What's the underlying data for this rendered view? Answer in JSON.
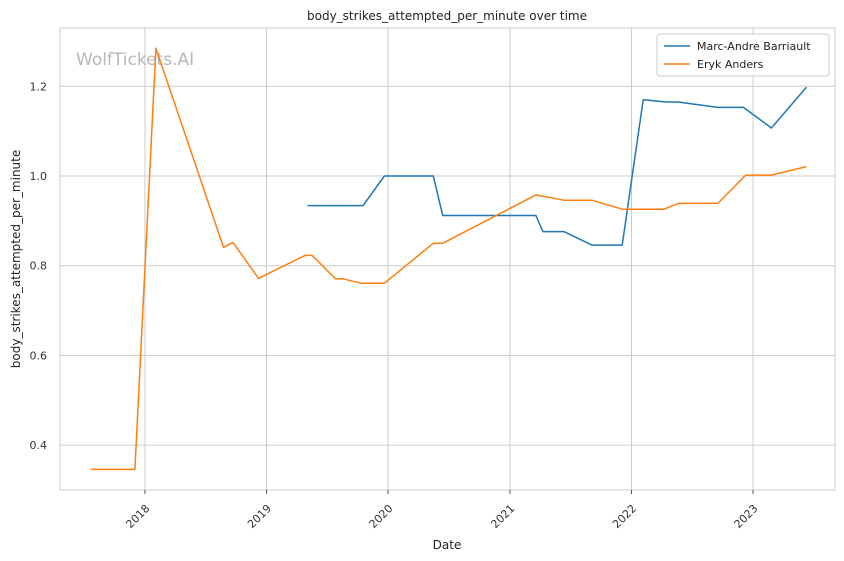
{
  "chart_data": {
    "type": "line",
    "title": "body_strikes_attempted_per_minute over time",
    "xlabel": "Date",
    "ylabel": "body_strikes_attempted_per_minute",
    "watermark": "WolfTickets.AI",
    "x_range": [
      "2017-04-21",
      "2023-09-04"
    ],
    "ylim": [
      0.3,
      1.33
    ],
    "x_ticks": [
      "2018",
      "2019",
      "2020",
      "2021",
      "2022",
      "2023"
    ],
    "y_ticks": [
      "0.4",
      "0.6",
      "0.8",
      "1.0",
      "1.2"
    ],
    "grid": true,
    "legend_position": "top-right",
    "colors": {
      "Marc-Andre Barriault": "#1f77b4",
      "Eryk Anders": "#ff7f0e"
    },
    "series": [
      {
        "name": "Marc-Andre Barriault",
        "points": [
          [
            "2019-05-04",
            0.934
          ],
          [
            "2019-10-18",
            0.934
          ],
          [
            "2019-12-21",
            1.0
          ],
          [
            "2020-05-16",
            1.0
          ],
          [
            "2020-06-13",
            0.912
          ],
          [
            "2021-03-20",
            0.912
          ],
          [
            "2021-04-10",
            0.876
          ],
          [
            "2021-06-12",
            0.876
          ],
          [
            "2021-09-04",
            0.846
          ],
          [
            "2021-12-04",
            0.846
          ],
          [
            "2022-02-05",
            1.17
          ],
          [
            "2022-04-16",
            1.165
          ],
          [
            "2022-05-21",
            1.165
          ],
          [
            "2022-09-17",
            1.153
          ],
          [
            "2022-12-03",
            1.153
          ],
          [
            "2023-02-25",
            1.107
          ],
          [
            "2023-06-10",
            1.198
          ]
        ]
      },
      {
        "name": "Eryk Anders",
        "points": [
          [
            "2017-07-22",
            0.346
          ],
          [
            "2017-12-02",
            0.346
          ],
          [
            "2018-02-03",
            1.285
          ],
          [
            "2018-08-25",
            0.841
          ],
          [
            "2018-09-22",
            0.852
          ],
          [
            "2018-12-08",
            0.772
          ],
          [
            "2019-04-27",
            0.823
          ],
          [
            "2019-05-18",
            0.823
          ],
          [
            "2019-07-27",
            0.771
          ],
          [
            "2019-08-17",
            0.771
          ],
          [
            "2019-10-12",
            0.761
          ],
          [
            "2019-12-21",
            0.761
          ],
          [
            "2020-05-16",
            0.85
          ],
          [
            "2020-06-13",
            0.85
          ],
          [
            "2021-03-20",
            0.958
          ],
          [
            "2021-06-12",
            0.946
          ],
          [
            "2021-09-04",
            0.946
          ],
          [
            "2021-12-04",
            0.926
          ],
          [
            "2022-04-09",
            0.926
          ],
          [
            "2022-05-21",
            0.939
          ],
          [
            "2022-09-17",
            0.939
          ],
          [
            "2022-12-10",
            1.002
          ],
          [
            "2023-02-25",
            1.002
          ],
          [
            "2023-06-10",
            1.021
          ]
        ]
      }
    ]
  }
}
